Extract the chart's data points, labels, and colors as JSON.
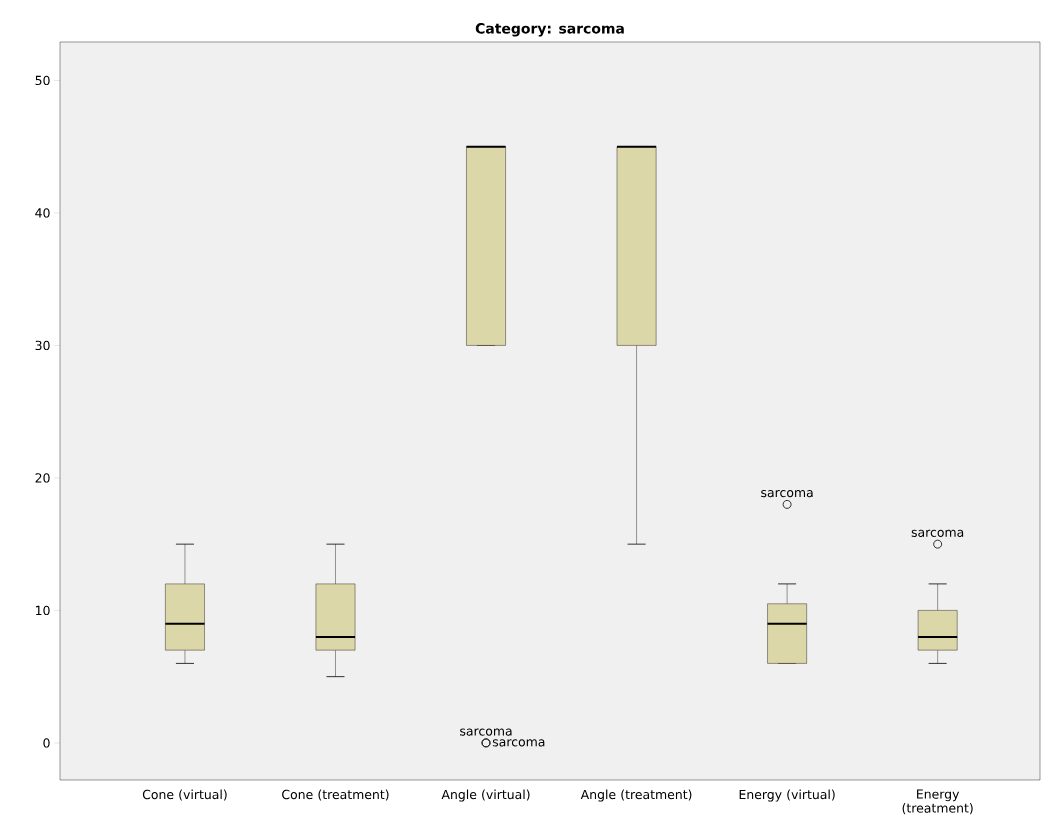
{
  "chart_data": {
    "type": "box",
    "title": "Category: sarcoma",
    "categories": [
      "Cone (virtual)",
      "Cone (treatment)",
      "Angle (virtual)",
      "Angle (treatment)",
      "Energy (virtual)",
      "Energy (treatment)"
    ],
    "boxes": [
      {
        "low": 6,
        "q1": 7,
        "median": 9,
        "q3": 12,
        "high": 15
      },
      {
        "low": 5,
        "q1": 7,
        "median": 8,
        "q3": 12,
        "high": 15
      },
      {
        "low": 30,
        "q1": 30,
        "median": 45,
        "q3": 45,
        "high": 45,
        "outliers": [
          0,
          0
        ]
      },
      {
        "low": 15,
        "q1": 30,
        "median": 45,
        "q3": 45,
        "high": 45
      },
      {
        "low": 6,
        "q1": 6,
        "median": 9,
        "q3": 10.5,
        "high": 12,
        "outliers": [
          18
        ]
      },
      {
        "low": 6,
        "q1": 7,
        "median": 8,
        "q3": 10,
        "high": 12,
        "outliers": [
          15
        ]
      }
    ],
    "color": "#dcd7a9",
    "ylim": [
      -2.8,
      52.9
    ],
    "yticks": [
      0,
      10,
      20,
      30,
      40,
      50
    ],
    "grid": false,
    "annotations": [
      "sarcoma",
      "sarcoma",
      "sarcoma",
      "sarcoma"
    ]
  }
}
